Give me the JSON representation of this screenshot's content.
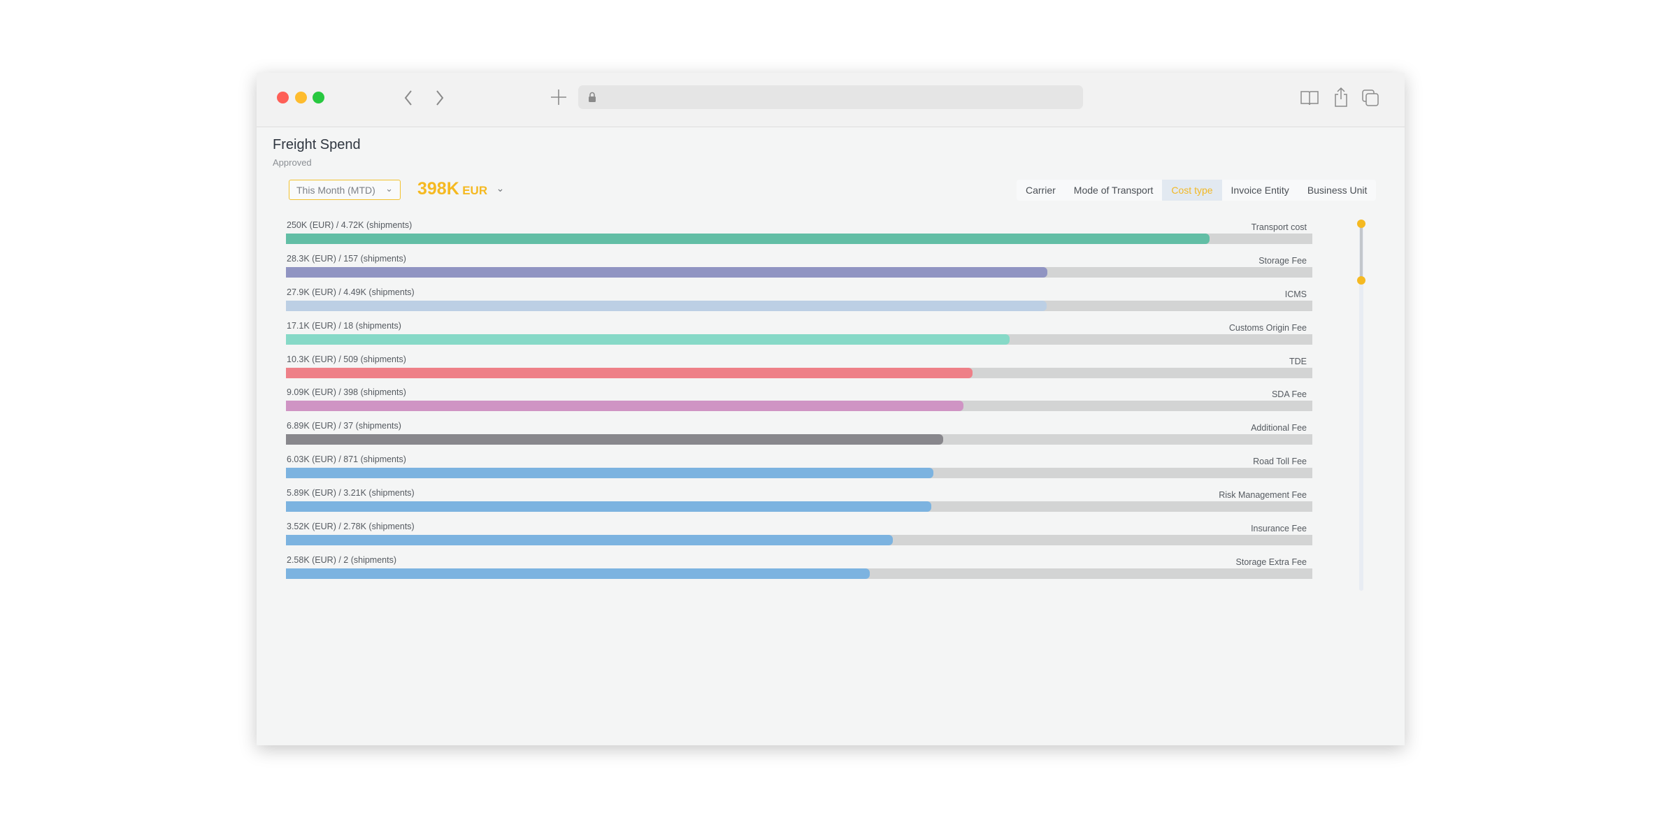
{
  "browser": {
    "traffic_lights": [
      "#fe5f57",
      "#febc2e",
      "#28c840"
    ],
    "icons": [
      "back-chevron-icon",
      "forward-chevron-icon",
      "new-tab-plus-icon",
      "lock-icon",
      "reader-book-icon",
      "share-icon",
      "tabs-icon"
    ]
  },
  "page": {
    "title": "Freight Spend",
    "subtitle": "Approved"
  },
  "filters": {
    "date_range": "This Month (MTD)",
    "total_value": "398K",
    "total_unit": "EUR",
    "accent_color": "#f5b921"
  },
  "tabs": [
    {
      "label": "Carrier",
      "active": false
    },
    {
      "label": "Mode of Transport",
      "active": false
    },
    {
      "label": "Cost type",
      "active": true
    },
    {
      "label": "Invoice Entity",
      "active": false
    },
    {
      "label": "Business Unit",
      "active": false
    }
  ],
  "chart_data": {
    "type": "bar",
    "orientation": "horizontal",
    "rows": [
      {
        "label": "250K (EUR) / 4.72K (shipments)",
        "name": "Transport cost",
        "fill_pct": 90.0,
        "color": "#62bea5"
      },
      {
        "label": "28.3K (EUR) / 157 (shipments)",
        "name": "Storage Fee",
        "fill_pct": 74.2,
        "color": "#9094c2"
      },
      {
        "label": "27.9K (EUR) / 4.49K (shipments)",
        "name": "ICMS",
        "fill_pct": 74.1,
        "color": "#bccfe4"
      },
      {
        "label": "17.1K (EUR) / 18 (shipments)",
        "name": "Customs Origin Fee",
        "fill_pct": 70.5,
        "color": "#86d9c7"
      },
      {
        "label": "10.3K (EUR) / 509 (shipments)",
        "name": "TDE",
        "fill_pct": 66.9,
        "color": "#ee8088"
      },
      {
        "label": "9.09K (EUR) / 398 (shipments)",
        "name": "SDA Fee",
        "fill_pct": 66.0,
        "color": "#cf94c4"
      },
      {
        "label": "6.89K (EUR) / 37 (shipments)",
        "name": "Additional Fee",
        "fill_pct": 64.0,
        "color": "#88878c"
      },
      {
        "label": "6.03K (EUR) / 871 (shipments)",
        "name": "Road Toll Fee",
        "fill_pct": 63.1,
        "color": "#7cb3e0"
      },
      {
        "label": "5.89K (EUR) / 3.21K (shipments)",
        "name": "Risk Management Fee",
        "fill_pct": 62.9,
        "color": "#7cb3e0"
      },
      {
        "label": "3.52K (EUR) / 2.78K (shipments)",
        "name": "Insurance Fee",
        "fill_pct": 59.1,
        "color": "#7cb3e0"
      },
      {
        "label": "2.58K (EUR) / 2 (shipments)",
        "name": "Storage Extra Fee",
        "fill_pct": 56.9,
        "color": "#7cb3e0"
      }
    ]
  },
  "scroll_range": {
    "start_pct": 0,
    "end_pct": 15
  }
}
